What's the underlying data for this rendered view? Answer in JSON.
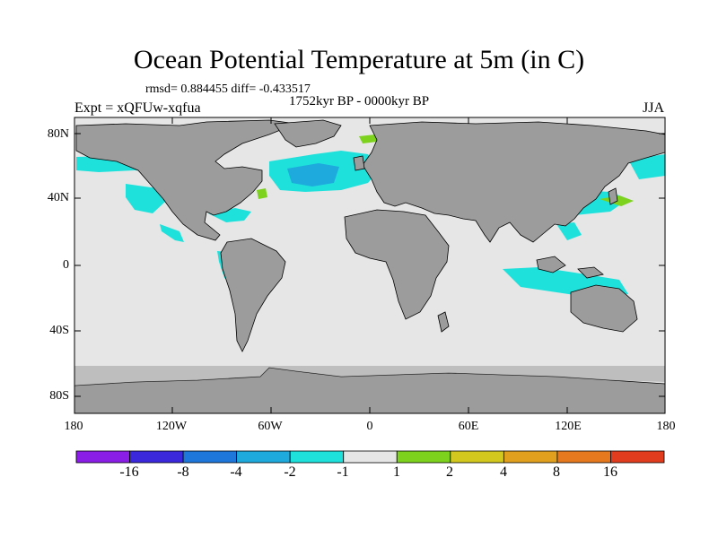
{
  "title": "Ocean Potential Temperature at 5m (in C)",
  "stats": "rmsd= 0.884455 diff= -0.433517",
  "period": "1752kyr BP - 0000kyr BP",
  "experiment": "Expt = xQFUw-xqfua",
  "season": "JJA",
  "y_ticks": [
    {
      "label": "80N",
      "value": 80
    },
    {
      "label": "40N",
      "value": 40
    },
    {
      "label": "0",
      "value": 0
    },
    {
      "label": "40S",
      "value": -40
    },
    {
      "label": "80S",
      "value": -80
    }
  ],
  "x_ticks": [
    {
      "label": "180",
      "value": -180
    },
    {
      "label": "120W",
      "value": -120
    },
    {
      "label": "60W",
      "value": -60
    },
    {
      "label": "0",
      "value": 0
    },
    {
      "label": "60E",
      "value": 60
    },
    {
      "label": "120E",
      "value": 120
    },
    {
      "label": "180",
      "value": 180
    }
  ],
  "colorbar": {
    "colors": [
      "#8a1ee6",
      "#3c28dc",
      "#1e78dc",
      "#1eaadc",
      "#1ee1dc",
      "#e6e6e6",
      "#7dd21e",
      "#d2c81e",
      "#e1a01e",
      "#e6781e",
      "#e13c1e"
    ],
    "labels": [
      "-16",
      "-8",
      "-4",
      "-2",
      "-1",
      "1",
      "2",
      "4",
      "8",
      "16"
    ]
  },
  "colors": {
    "land": "#9c9c9c",
    "ocean_neutral": "#e6e6e6",
    "coast": "#000000"
  }
}
